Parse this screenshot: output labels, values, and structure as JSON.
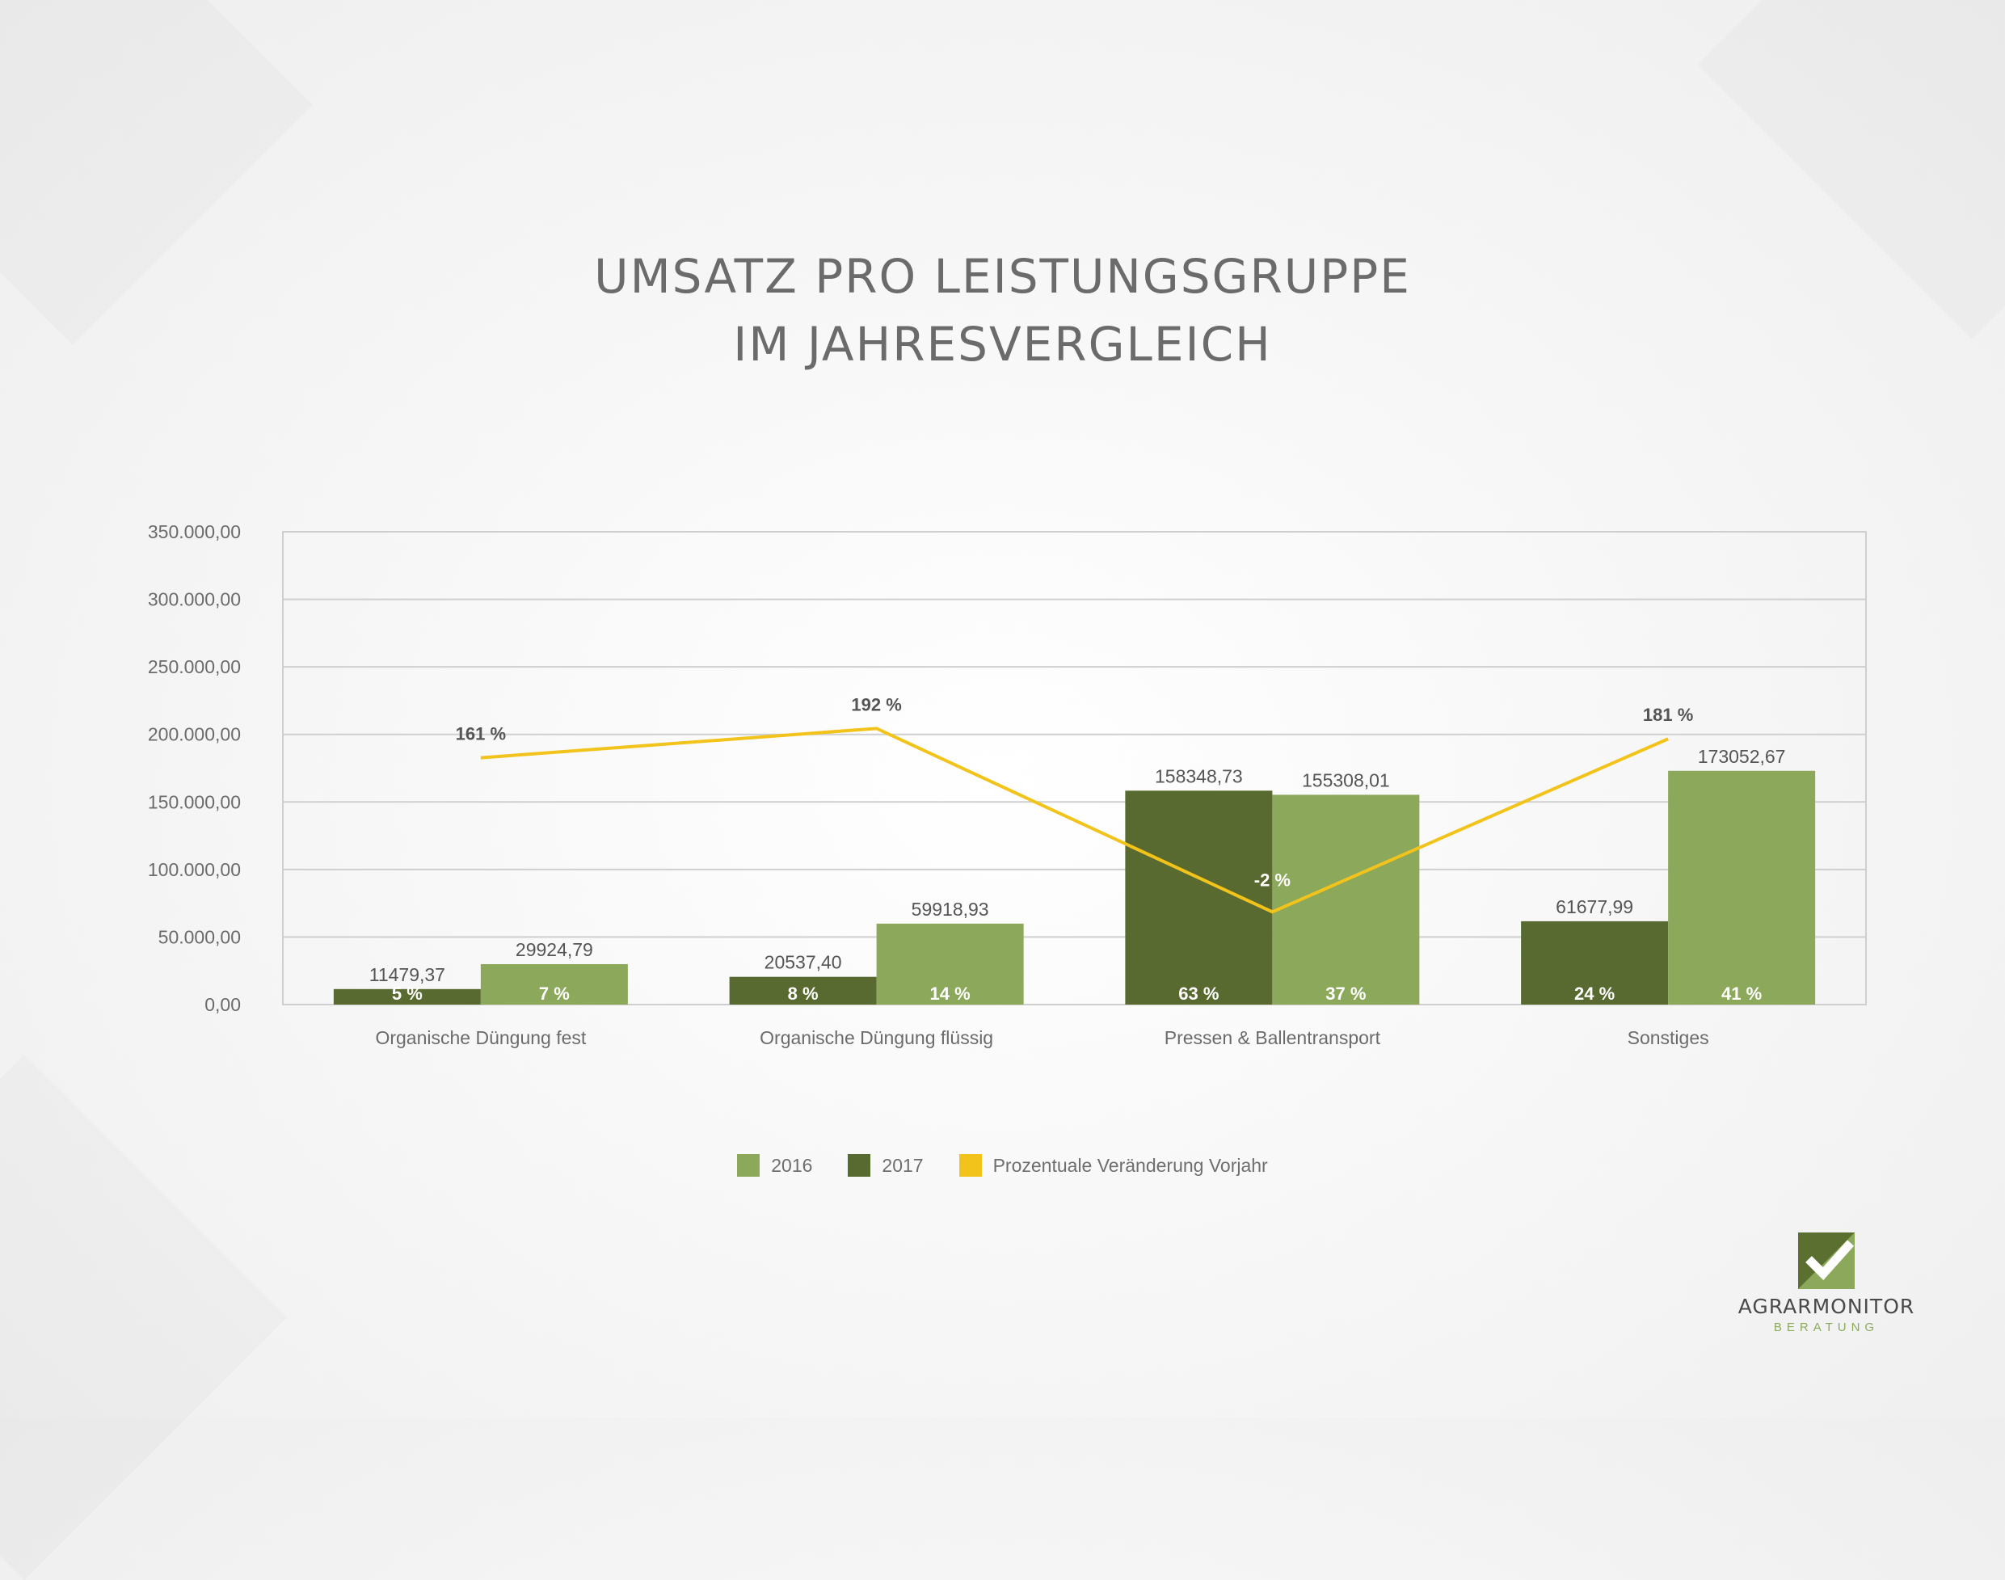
{
  "title": {
    "line1": "UMSATZ PRO LEISTUNGSGRUPPE",
    "line2": "IM JAHRESVERGLEICH"
  },
  "colors": {
    "series_2016": "#8ca85b",
    "series_2017": "#586a2f",
    "change_line": "#f2c31a",
    "grid": "#cfcfcf",
    "text": "#666666"
  },
  "chart_data": {
    "type": "bar",
    "title": "UMSATZ PRO LEISTUNGSGRUPPE IM JAHRESVERGLEICH",
    "categories": [
      "Organische Düngung fest",
      "Organische Düngung flüssig",
      "Pressen & Ballentransport",
      "Sonstiges"
    ],
    "ylim": [
      0,
      350000
    ],
    "yticks": [
      {
        "value": 0,
        "label": "0,00"
      },
      {
        "value": 50000,
        "label": "50.000,00"
      },
      {
        "value": 100000,
        "label": "100.000,00"
      },
      {
        "value": 150000,
        "label": "150.000,00"
      },
      {
        "value": 200000,
        "label": "200.000,00"
      },
      {
        "value": 250000,
        "label": "250.000,00"
      },
      {
        "value": 300000,
        "label": "300.000,00"
      },
      {
        "value": 350000,
        "label": "350.000,00"
      }
    ],
    "grid": true,
    "series": [
      {
        "name": "2017",
        "values": [
          11479.37,
          20537.4,
          158348.73,
          61677.99
        ],
        "value_labels": [
          "11479,37",
          "20537,40",
          "158348,73",
          "61677,99"
        ],
        "share_labels": [
          "5 %",
          "8 %",
          "63 %",
          "24 %"
        ]
      },
      {
        "name": "2016",
        "values": [
          29924.79,
          59918.93,
          155308.01,
          173052.67
        ],
        "value_labels": [
          "29924,79",
          "59918,93",
          "155308,01",
          "173052,67"
        ],
        "share_labels": [
          "7 %",
          "14 %",
          "37 %",
          "41 %"
        ]
      }
    ],
    "line_series": {
      "name": "Prozentuale Veränderung Vorjahr",
      "values": [
        161,
        192,
        -2,
        181
      ],
      "value_labels": [
        "161 %",
        "192 %",
        "-2 %",
        "181 %"
      ]
    },
    "legend": {
      "position": "bottom",
      "entries": [
        "2016",
        "2017",
        "Prozentuale Veränderung Vorjahr"
      ]
    }
  },
  "logo": {
    "name": "AGRARMONITOR",
    "subtitle": "BERATUNG"
  }
}
